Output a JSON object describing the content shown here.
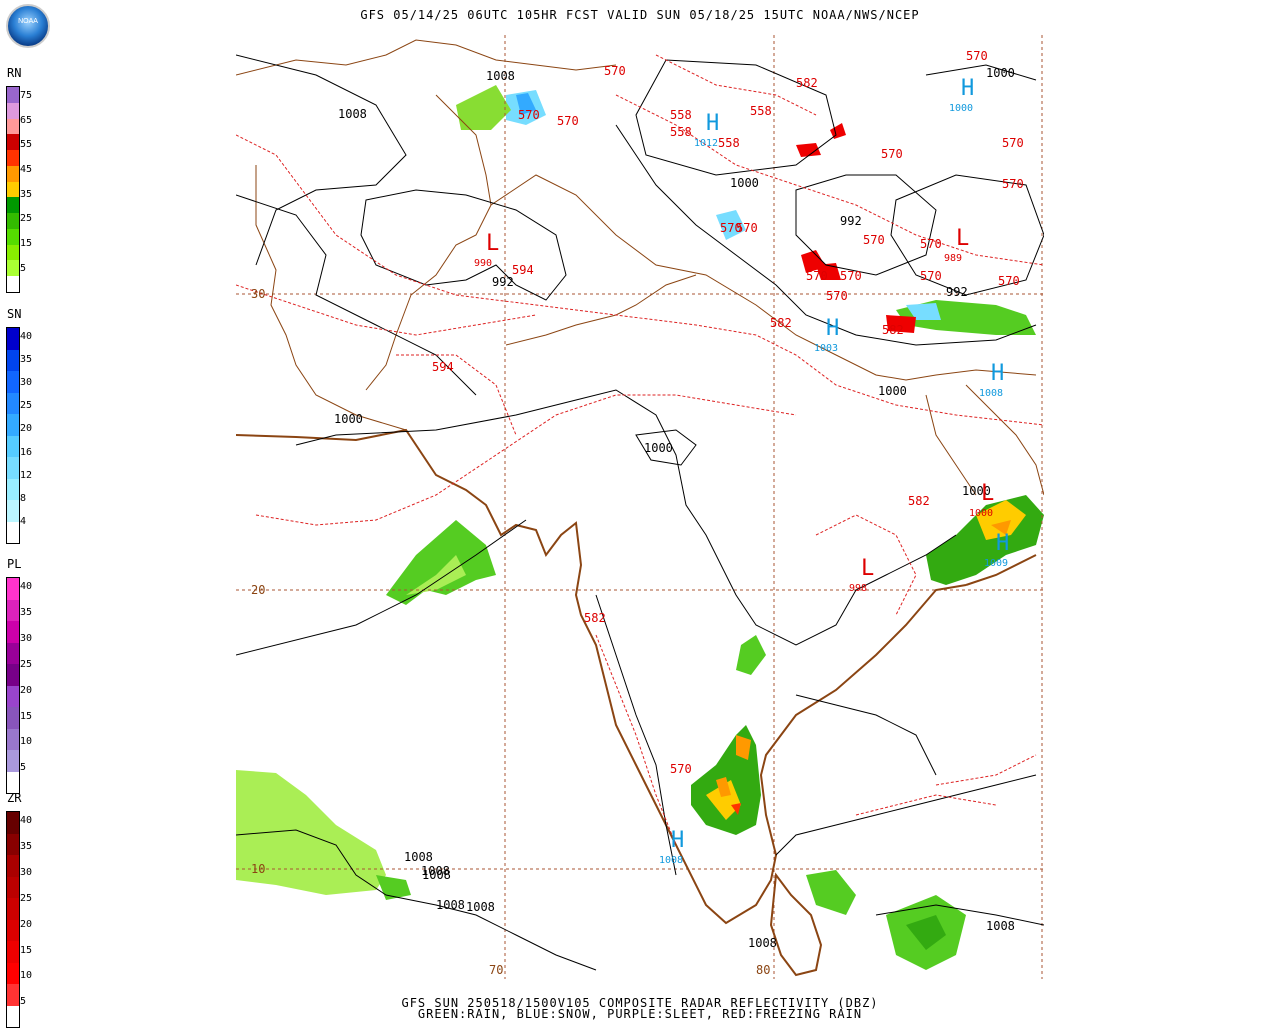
{
  "header": {
    "title": "GFS 05/14/25 06UTC 105HR FCST VALID SUN 05/18/25 15UTC NOAA/NWS/NCEP"
  },
  "logo": {
    "text": "NOAA"
  },
  "footer": {
    "line1": "GFS SUN 250518/1500V105 COMPOSITE RADAR REFLECTIVITY (DBZ)",
    "line2": "GREEN:RAIN, BLUE:SNOW, PURPLE:SLEET, RED:FREEZING RAIN"
  },
  "legends": [
    {
      "title": "RN",
      "colors": [
        "#9966cc",
        "#dd99dd",
        "#ff9999",
        "#cc0000",
        "#ff3300",
        "#ff9900",
        "#ffcc00",
        "#009900",
        "#33bb00",
        "#55dd00",
        "#88ee00",
        "#aaff33",
        "#ffffff"
      ],
      "labels": [
        "75",
        "65",
        "55",
        "45",
        "35",
        "25",
        "15",
        "5"
      ]
    },
    {
      "title": "SN",
      "colors": [
        "#0000cc",
        "#0044ee",
        "#1166ff",
        "#2288ff",
        "#33aaff",
        "#55ccff",
        "#77ddff",
        "#99eeff",
        "#bbf6ff",
        "#ffffff"
      ],
      "labels": [
        "40",
        "35",
        "30",
        "25",
        "20",
        "16",
        "12",
        "8",
        "4"
      ]
    },
    {
      "title": "PL",
      "colors": [
        "#ff33cc",
        "#dd22bb",
        "#cc00aa",
        "#990099",
        "#770088",
        "#9944cc",
        "#8855bb",
        "#9977cc",
        "#aa99dd",
        "#ffffff"
      ],
      "labels": [
        "40",
        "35",
        "30",
        "25",
        "20",
        "15",
        "10",
        "5"
      ]
    },
    {
      "title": "ZR",
      "colors": [
        "#660000",
        "#880000",
        "#aa0000",
        "#bb0000",
        "#cc0000",
        "#dd0000",
        "#ee0000",
        "#ff0000",
        "#ff3333",
        "#ffffff"
      ],
      "labels": [
        "40",
        "35",
        "30",
        "25",
        "20",
        "15",
        "10",
        "5"
      ]
    }
  ],
  "map": {
    "lat_labels": [
      "30",
      "20",
      "10"
    ],
    "lon_labels": [
      "70",
      "80"
    ],
    "pressure_labels": [
      "1008",
      "1008",
      "1000",
      "1000",
      "1000",
      "1000",
      "1000",
      "1000",
      "992",
      "992",
      "992",
      "1008",
      "1008",
      "1008",
      "1008",
      "1008",
      "1008",
      "1008"
    ],
    "thickness_labels": [
      "570",
      "570",
      "570",
      "570",
      "558",
      "558",
      "558",
      "558",
      "582",
      "570",
      "570",
      "570",
      "570",
      "570",
      "570",
      "570",
      "570",
      "570",
      "570",
      "570",
      "570",
      "594",
      "594",
      "582",
      "582",
      "570",
      "582",
      "582"
    ],
    "centers": [
      {
        "letter": "L",
        "value": "990",
        "color": "#dd0000"
      },
      {
        "letter": "L",
        "value": "989",
        "color": "#dd0000"
      },
      {
        "letter": "L",
        "value": "998",
        "color": "#dd0000"
      },
      {
        "letter": "H",
        "value": "1012",
        "color": "#1199dd"
      },
      {
        "letter": "H",
        "value": "1000",
        "color": "#1199dd"
      },
      {
        "letter": "H",
        "value": "1003",
        "color": "#1199dd"
      },
      {
        "letter": "H",
        "value": "1008",
        "color": "#1199dd"
      },
      {
        "letter": "H",
        "value": "1008",
        "color": "#1199dd"
      },
      {
        "letter": "H",
        "value": "1009",
        "color": "#1199dd"
      },
      {
        "letter": "L",
        "value": "1000",
        "color": "#dd0000"
      }
    ]
  }
}
